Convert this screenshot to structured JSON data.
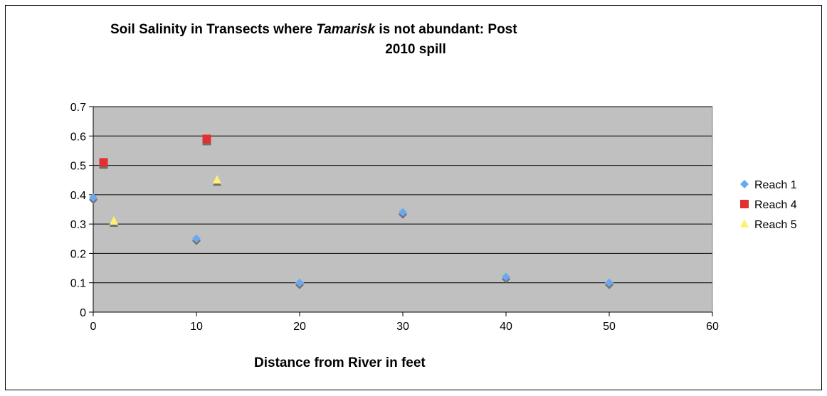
{
  "chart_data": {
    "type": "scatter",
    "title_part1": "Soil Salinity in Transects where ",
    "title_italic": "Tamarisk",
    "title_part2": " is not abundant: Post",
    "title_line2": "2010 spill",
    "xlabel": "Distance from River in feet",
    "ylabel": "",
    "xlim": [
      0,
      60
    ],
    "ylim": [
      0,
      0.7
    ],
    "xticks": [
      0,
      10,
      20,
      30,
      40,
      50,
      60
    ],
    "yticks": [
      0,
      0.1,
      0.2,
      0.3,
      0.4,
      0.5,
      0.6,
      0.7
    ],
    "grid": true,
    "legend_position": "right",
    "series": [
      {
        "name": "Reach 1",
        "marker": "diamond",
        "color": "#6aa8f0",
        "points": [
          [
            0,
            0.39
          ],
          [
            10,
            0.25
          ],
          [
            20,
            0.1
          ],
          [
            30,
            0.34
          ],
          [
            40,
            0.12
          ],
          [
            50,
            0.1
          ]
        ]
      },
      {
        "name": "Reach 4",
        "marker": "square",
        "color": "#e03030",
        "points": [
          [
            1,
            0.51
          ],
          [
            11,
            0.59
          ]
        ]
      },
      {
        "name": "Reach 5",
        "marker": "triangle",
        "color": "#fff070",
        "points": [
          [
            2,
            0.31
          ],
          [
            12,
            0.45
          ]
        ]
      }
    ],
    "colors": {
      "plot_background": "#c0c0c0",
      "gridline": "#000000",
      "marker_shadow": "#707070"
    }
  }
}
